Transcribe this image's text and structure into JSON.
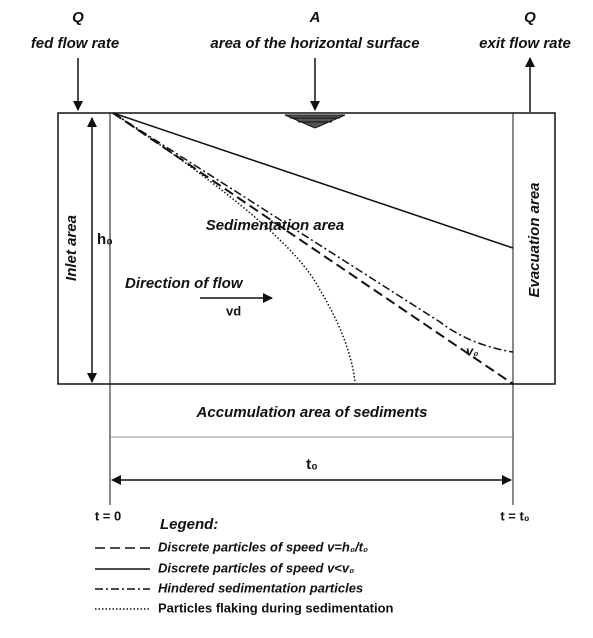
{
  "top": {
    "inlet_symbol": "Q",
    "inlet_caption": "fed flow rate",
    "surface_symbol": "A",
    "surface_caption": "area of the horizontal surface",
    "outlet_symbol": "Q",
    "outlet_caption": "exit flow rate"
  },
  "zones": {
    "inlet": "Inlet area",
    "sedimentation": "Sedimentation area",
    "evacuation": "Evacuation area",
    "accumulation": "Accumulation area of sediments"
  },
  "labels": {
    "depth": "h₀",
    "flow": "Direction of flow",
    "flow_speed": "vd",
    "settling_speed": "v₀",
    "time_span": "t₀",
    "time_start": "t = 0",
    "time_end": "t = t₀"
  },
  "legend": {
    "title": "Legend:",
    "items": [
      "Discrete particles of speed v=h₀/t₀",
      "Discrete particles of speed v<v₀",
      "Hindered sedimentation particles",
      "Particles flaking during sedimentation"
    ]
  }
}
